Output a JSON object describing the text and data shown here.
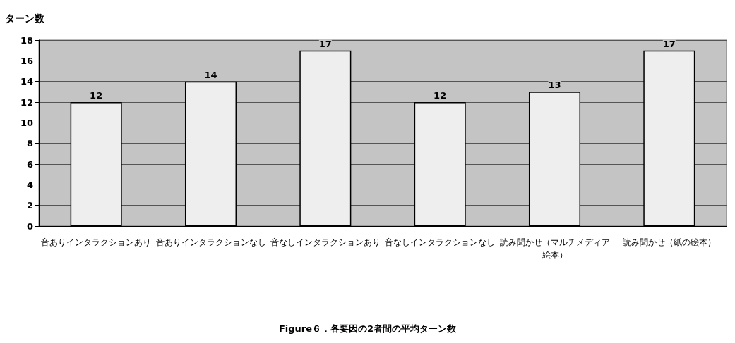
{
  "chart_data": {
    "type": "bar",
    "title": "Figure６．各要因の2者間の平均ターン数",
    "ylabel": "ターン数",
    "categories": [
      "音ありインタラクションあり",
      "音ありインタラクションなし",
      "音なしインタラクションあり",
      "音なしインタラクションなし",
      "読み聞かせ（マルチメディア絵本）",
      "読み聞かせ（紙の絵本）"
    ],
    "values": [
      12,
      14,
      17,
      12,
      13,
      17
    ],
    "color": "#eeeeee",
    "ylim": [
      0,
      18
    ],
    "yticks": [
      0,
      2,
      4,
      6,
      8,
      10,
      12,
      14,
      16,
      18
    ],
    "grid": "y",
    "data_labels": true
  }
}
